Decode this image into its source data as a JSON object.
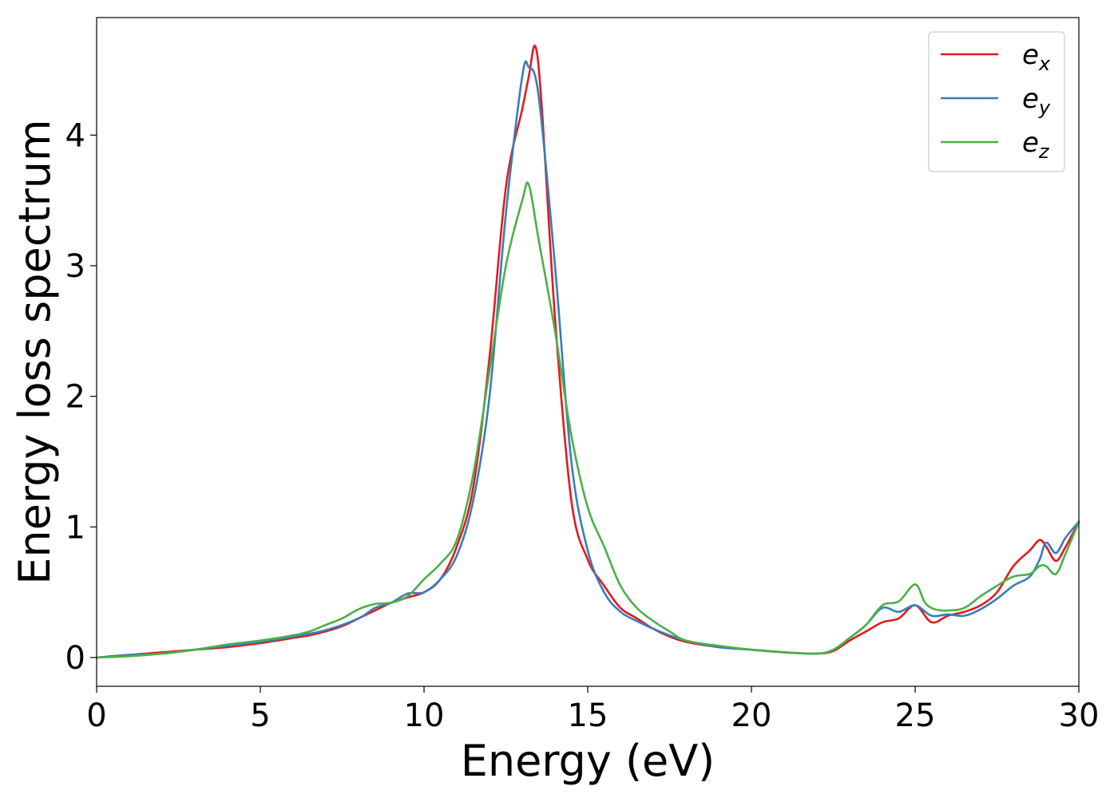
{
  "chart_data": {
    "type": "line",
    "title": "",
    "xlabel": "Energy (eV)",
    "ylabel": "Energy loss spectrum",
    "xlim": [
      0,
      30
    ],
    "ylim": [
      -0.22,
      4.9
    ],
    "xticks": [
      0,
      5,
      10,
      15,
      20,
      25,
      30
    ],
    "xtick_labels": [
      "0",
      "5",
      "10",
      "15",
      "20",
      "25",
      "30"
    ],
    "yticks": [
      0,
      1,
      2,
      3,
      4
    ],
    "ytick_labels": [
      "0",
      "1",
      "2",
      "3",
      "4"
    ],
    "grid": false,
    "legend_placement": "top-right",
    "series": [
      {
        "name": "e_x",
        "legend_main": "e",
        "legend_sub": "x",
        "color": "#e41a1c",
        "x": [
          0,
          1,
          2,
          3,
          4,
          5,
          6,
          6.5,
          7,
          7.5,
          8,
          8.5,
          9,
          9.5,
          10,
          10.5,
          11,
          11.5,
          12,
          12.5,
          13,
          13.2,
          13.4,
          13.6,
          14,
          14.5,
          15,
          15.5,
          16,
          16.5,
          17,
          17.5,
          18,
          19,
          20,
          21,
          22,
          22.5,
          23,
          23.5,
          24,
          24.5,
          25,
          25.5,
          26,
          26.5,
          27,
          27.5,
          28,
          28.5,
          28.8,
          29,
          29.3,
          29.6,
          30
        ],
        "y": [
          0.0,
          0.02,
          0.04,
          0.06,
          0.08,
          0.11,
          0.15,
          0.17,
          0.2,
          0.24,
          0.3,
          0.36,
          0.42,
          0.46,
          0.5,
          0.6,
          0.85,
          1.3,
          2.3,
          3.6,
          4.2,
          4.45,
          4.68,
          4.2,
          2.6,
          1.2,
          0.75,
          0.55,
          0.38,
          0.3,
          0.22,
          0.16,
          0.12,
          0.08,
          0.06,
          0.04,
          0.03,
          0.05,
          0.13,
          0.2,
          0.27,
          0.3,
          0.4,
          0.27,
          0.32,
          0.35,
          0.4,
          0.5,
          0.7,
          0.82,
          0.9,
          0.85,
          0.74,
          0.85,
          1.04
        ]
      },
      {
        "name": "e_y",
        "legend_main": "e",
        "legend_sub": "y",
        "color": "#377eb8",
        "x": [
          0,
          1,
          2,
          3,
          4,
          5,
          6,
          7,
          8,
          8.5,
          9,
          9.5,
          10,
          10.5,
          11,
          11.5,
          12,
          12.5,
          13,
          13.2,
          13.5,
          14,
          14.5,
          15,
          15.5,
          16,
          16.5,
          17,
          17.5,
          18,
          19,
          20,
          21,
          22,
          22.5,
          23,
          23.5,
          24,
          24.5,
          25,
          25.5,
          26,
          26.5,
          27,
          27.5,
          28,
          28.5,
          28.8,
          29,
          29.3,
          29.6,
          30
        ],
        "y": [
          0.0,
          0.02,
          0.03,
          0.06,
          0.09,
          0.12,
          0.16,
          0.21,
          0.3,
          0.38,
          0.42,
          0.49,
          0.5,
          0.6,
          0.78,
          1.2,
          2.0,
          3.4,
          4.45,
          4.52,
          4.3,
          3.0,
          1.5,
          0.82,
          0.5,
          0.35,
          0.28,
          0.22,
          0.17,
          0.13,
          0.08,
          0.06,
          0.04,
          0.03,
          0.06,
          0.15,
          0.25,
          0.38,
          0.35,
          0.4,
          0.32,
          0.33,
          0.32,
          0.37,
          0.45,
          0.55,
          0.62,
          0.75,
          0.88,
          0.8,
          0.92,
          1.04
        ]
      },
      {
        "name": "e_z",
        "legend_main": "e",
        "legend_sub": "z",
        "color": "#4daf4a",
        "x": [
          0,
          1,
          2,
          3,
          4,
          5,
          6,
          6.5,
          7,
          7.5,
          8,
          8.5,
          9,
          9.5,
          10,
          10.5,
          11,
          11.5,
          12,
          12.5,
          13,
          13.2,
          13.5,
          14,
          14.5,
          15,
          15.5,
          16,
          16.5,
          17,
          17.5,
          18,
          19,
          20,
          21,
          22,
          22.5,
          23,
          23.5,
          24,
          24.5,
          25,
          25.3,
          25.6,
          26,
          26.5,
          27,
          27.5,
          28,
          28.5,
          28.8,
          29,
          29.3,
          29.6,
          30
        ],
        "y": [
          0.0,
          0.01,
          0.03,
          0.06,
          0.1,
          0.13,
          0.17,
          0.2,
          0.25,
          0.3,
          0.37,
          0.41,
          0.42,
          0.47,
          0.6,
          0.72,
          0.9,
          1.4,
          2.2,
          3.0,
          3.5,
          3.62,
          3.2,
          2.5,
          1.7,
          1.15,
          0.85,
          0.55,
          0.38,
          0.28,
          0.2,
          0.13,
          0.09,
          0.06,
          0.04,
          0.03,
          0.06,
          0.15,
          0.25,
          0.4,
          0.43,
          0.56,
          0.42,
          0.37,
          0.36,
          0.38,
          0.47,
          0.55,
          0.62,
          0.64,
          0.7,
          0.7,
          0.64,
          0.8,
          1.04
        ]
      }
    ]
  }
}
